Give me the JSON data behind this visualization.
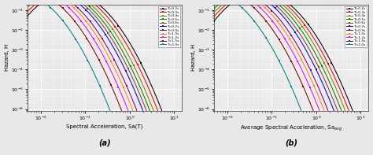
{
  "periods": [
    "T=0.2s",
    "T=0.3s",
    "T=0.4s",
    "T=0.5s",
    "T=0.6s",
    "T=0.7s",
    "T=0.9s",
    "T=1.0s",
    "T=1.2s",
    "T=1.5s",
    "T=2.0s"
  ],
  "colors": [
    "#000000",
    "#ff0000",
    "#808000",
    "#008000",
    "#8B4513",
    "#0000ff",
    "#800080",
    "#ff8800",
    "#ff00ff",
    "#800000",
    "#008080"
  ],
  "xlabel_a": "Spectral Acceleration, Sa(T)",
  "xlabel_b": "Average Spectral Acceleration, Sa$_{avg}$",
  "ylabel": "Hazard, H",
  "label_a": "(a)",
  "label_b": "(b)",
  "xlim_a": [
    0.005,
    15.0
  ],
  "xlim_b": [
    0.005,
    15.0
  ],
  "ylim": [
    8e-07,
    0.2
  ],
  "bg_color": "#e8e8e8",
  "grid_color": "#ffffff",
  "curve_params_a": [
    [
      0.8,
      3.5,
      0.6
    ],
    [
      0.65,
      3.5,
      0.6
    ],
    [
      0.52,
      3.5,
      0.6
    ],
    [
      0.43,
      3.5,
      0.6
    ],
    [
      0.36,
      3.5,
      0.6
    ],
    [
      0.3,
      3.5,
      0.6
    ],
    [
      0.22,
      3.5,
      0.6
    ],
    [
      0.18,
      3.5,
      0.6
    ],
    [
      0.14,
      3.5,
      0.6
    ],
    [
      0.1,
      3.5,
      0.6
    ],
    [
      0.055,
      3.5,
      0.6
    ]
  ],
  "curve_params_b": [
    [
      1.0,
      3.5,
      0.6
    ],
    [
      0.82,
      3.5,
      0.6
    ],
    [
      0.68,
      3.5,
      0.6
    ],
    [
      0.56,
      3.5,
      0.6
    ],
    [
      0.46,
      3.5,
      0.6
    ],
    [
      0.38,
      3.5,
      0.6
    ],
    [
      0.28,
      3.5,
      0.6
    ],
    [
      0.23,
      3.5,
      0.6
    ],
    [
      0.18,
      3.5,
      0.6
    ],
    [
      0.13,
      3.5,
      0.6
    ],
    [
      0.07,
      3.5,
      0.6
    ]
  ]
}
